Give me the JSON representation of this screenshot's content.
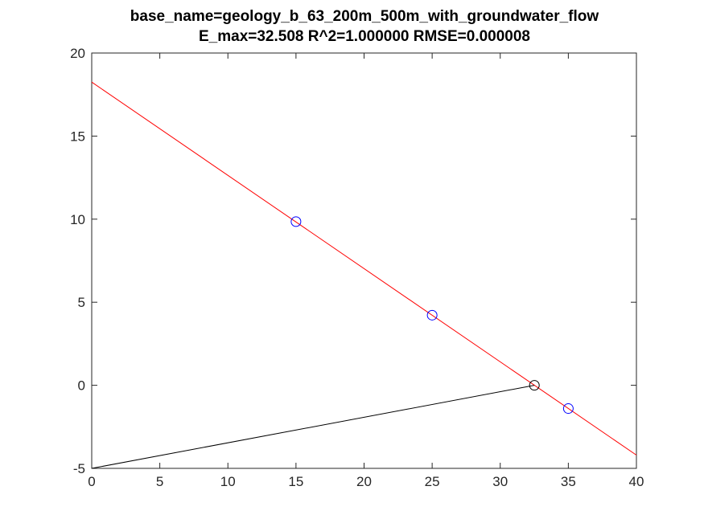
{
  "chart_data": {
    "type": "line",
    "title_line1": "base_name=geology_b_63_200m_500m_with_groundwater_flow",
    "title_line2": "E_max=32.508 R^2=1.000000 RMSE=0.000008",
    "xlabel": "",
    "ylabel": "",
    "xlim": [
      0,
      40
    ],
    "ylim": [
      -5,
      20
    ],
    "xticks": [
      0,
      5,
      10,
      15,
      20,
      25,
      30,
      35,
      40
    ],
    "yticks": [
      -5,
      0,
      5,
      10,
      15,
      20
    ],
    "grid": false,
    "legend": "none",
    "series": [
      {
        "kind": "line",
        "color": "#ff0000",
        "points": [
          [
            0,
            18.25
          ],
          [
            40,
            -4.2
          ]
        ]
      },
      {
        "kind": "line",
        "color": "#000000",
        "points": [
          [
            0,
            -5
          ],
          [
            32.508,
            0
          ]
        ]
      },
      {
        "kind": "markers",
        "marker": "circle",
        "color": "#0000ff",
        "points": [
          [
            15,
            9.85
          ],
          [
            25,
            4.22
          ],
          [
            35,
            -1.4
          ]
        ]
      },
      {
        "kind": "markers",
        "marker": "circle",
        "color": "#000000",
        "points": [
          [
            32.508,
            0
          ]
        ]
      }
    ]
  }
}
